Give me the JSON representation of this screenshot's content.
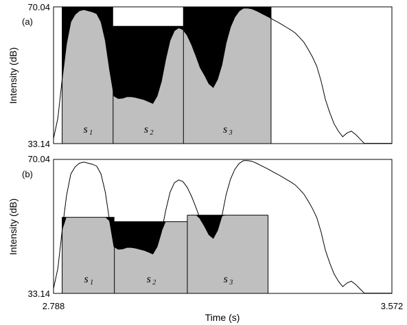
{
  "chart_data": [
    {
      "panel_label": "(a)",
      "type": "area",
      "ylabel": "Intensity (dB)",
      "ylim": [
        33.14,
        70.04
      ],
      "xlim": [
        2.788,
        3.572
      ],
      "y_tick_labels": [
        "70.04",
        "33.14"
      ],
      "intensity_contour": {
        "x": [
          2.788,
          2.798,
          2.808,
          2.818,
          2.828,
          2.838,
          2.848,
          2.858,
          2.868,
          2.878,
          2.888,
          2.898,
          2.908,
          2.918,
          2.928,
          2.938,
          2.948,
          2.958,
          2.968,
          2.978,
          2.988,
          2.998,
          3.008,
          3.018,
          3.028,
          3.038,
          3.048,
          3.058,
          3.068,
          3.078,
          3.088,
          3.098,
          3.108,
          3.118,
          3.128,
          3.138,
          3.148,
          3.158,
          3.168,
          3.178,
          3.188,
          3.198,
          3.208,
          3.218,
          3.228,
          3.238,
          3.248,
          3.258,
          3.268,
          3.278,
          3.288,
          3.298,
          3.308,
          3.318,
          3.328,
          3.338,
          3.348,
          3.358,
          3.368,
          3.378,
          3.388,
          3.398,
          3.408,
          3.418,
          3.428,
          3.438,
          3.448,
          3.458,
          3.468,
          3.478,
          3.488,
          3.498,
          3.508,
          3.518,
          3.528,
          3.538,
          3.548,
          3.558,
          3.572
        ],
        "y": [
          34.5,
          40.0,
          50.5,
          60.0,
          66.0,
          68.0,
          69.0,
          69.3,
          69.0,
          68.7,
          68.2,
          66.0,
          61.0,
          53.0,
          46.0,
          45.3,
          45.4,
          45.8,
          45.8,
          45.6,
          45.3,
          45.0,
          44.5,
          44.0,
          46.0,
          50.0,
          56.0,
          61.0,
          63.6,
          64.4,
          63.9,
          62.3,
          59.8,
          56.8,
          53.6,
          51.6,
          49.3,
          48.3,
          50.5,
          54.4,
          60.4,
          64.6,
          67.3,
          68.9,
          69.7,
          69.7,
          69.5,
          69.0,
          68.4,
          67.8,
          67.2,
          66.5,
          65.9,
          65.2,
          64.5,
          63.8,
          63.0,
          61.8,
          60.5,
          58.6,
          56.5,
          54.0,
          50.0,
          45.0,
          41.5,
          38.5,
          36.5,
          35.0,
          36.0,
          36.5,
          35.6,
          34.4,
          33.2,
          33.2,
          33.2,
          33.2,
          33.2,
          33.2,
          33.2
        ]
      },
      "segments": [
        {
          "label": "s",
          "subscript": "1",
          "x_start": 2.808,
          "x_end": 2.926,
          "level": 70.04
        },
        {
          "label": "s",
          "subscript": "2",
          "x_start": 2.926,
          "x_end": 3.089,
          "level": 64.8
        },
        {
          "label": "s",
          "subscript": "3",
          "x_start": 3.089,
          "x_end": 3.292,
          "level": 70.04
        }
      ]
    },
    {
      "panel_label": "(b)",
      "type": "area",
      "ylabel": "Intensity (dB)",
      "xlabel": "Time (s)",
      "ylim": [
        33.14,
        70.04
      ],
      "xlim": [
        2.788,
        3.572
      ],
      "y_tick_labels": [
        "70.04",
        "33.14"
      ],
      "x_tick_labels": [
        "2.788",
        "3.572"
      ],
      "intensity_contour": {
        "x": [
          2.788,
          2.798,
          2.808,
          2.818,
          2.828,
          2.838,
          2.848,
          2.858,
          2.868,
          2.878,
          2.888,
          2.898,
          2.908,
          2.918,
          2.928,
          2.938,
          2.948,
          2.958,
          2.968,
          2.978,
          2.988,
          2.998,
          3.008,
          3.018,
          3.028,
          3.038,
          3.048,
          3.058,
          3.068,
          3.078,
          3.088,
          3.098,
          3.108,
          3.118,
          3.128,
          3.138,
          3.148,
          3.158,
          3.168,
          3.178,
          3.188,
          3.198,
          3.208,
          3.218,
          3.228,
          3.238,
          3.248,
          3.258,
          3.268,
          3.278,
          3.288,
          3.298,
          3.308,
          3.318,
          3.328,
          3.338,
          3.348,
          3.358,
          3.368,
          3.378,
          3.388,
          3.398,
          3.408,
          3.418,
          3.428,
          3.438,
          3.448,
          3.458,
          3.468,
          3.478,
          3.488,
          3.498,
          3.508,
          3.518,
          3.528,
          3.538,
          3.548,
          3.558,
          3.572
        ],
        "y": [
          34.5,
          40.0,
          50.5,
          60.0,
          66.0,
          68.0,
          69.0,
          69.3,
          69.0,
          68.7,
          68.2,
          66.0,
          61.0,
          53.0,
          46.0,
          45.3,
          45.4,
          45.8,
          45.8,
          45.6,
          45.3,
          45.0,
          44.5,
          44.0,
          46.0,
          50.0,
          56.0,
          61.0,
          63.6,
          64.4,
          63.9,
          62.3,
          59.8,
          56.8,
          53.6,
          51.6,
          49.3,
          48.3,
          50.5,
          54.4,
          60.4,
          64.6,
          67.3,
          68.9,
          69.7,
          69.7,
          69.5,
          69.0,
          68.4,
          67.8,
          67.2,
          66.5,
          65.9,
          65.2,
          64.5,
          63.8,
          63.0,
          61.8,
          60.5,
          58.6,
          56.5,
          54.0,
          50.0,
          45.0,
          41.5,
          38.5,
          36.5,
          35.0,
          36.0,
          36.5,
          35.6,
          34.4,
          33.2,
          33.2,
          33.2,
          33.2,
          33.2,
          33.2,
          33.2
        ]
      },
      "segments": [
        {
          "label": "s",
          "subscript": "1",
          "x_start": 2.808,
          "x_end": 2.929,
          "level": 54.1
        },
        {
          "label": "s",
          "subscript": "2",
          "x_start": 2.929,
          "x_end": 3.098,
          "level": 52.9
        },
        {
          "label": "s",
          "subscript": "3",
          "x_start": 3.098,
          "x_end": 3.285,
          "level": 54.7
        }
      ]
    }
  ],
  "colors": {
    "contour_fill": "#bfbfbf",
    "mismatch_fill": "#000000",
    "line": "#000000",
    "background": "#ffffff"
  }
}
